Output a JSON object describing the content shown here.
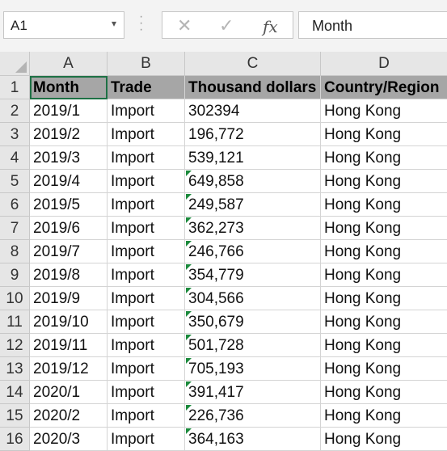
{
  "formula_bar": {
    "name_box": "A1",
    "fx_label": "fx",
    "content": "Month"
  },
  "columns": [
    "A",
    "B",
    "C",
    "D"
  ],
  "header_row": {
    "row_num": "1",
    "cells": [
      "Month",
      "Trade",
      "Thousand dollars",
      "Country/Region"
    ]
  },
  "rows": [
    {
      "num": "2",
      "cells": [
        "2019/1",
        "Import",
        "302394",
        "Hong Kong"
      ],
      "warn": false
    },
    {
      "num": "3",
      "cells": [
        "2019/2",
        "Import",
        "196,772",
        "Hong Kong"
      ],
      "warn": false
    },
    {
      "num": "4",
      "cells": [
        "2019/3",
        "Import",
        "539,121",
        "Hong Kong"
      ],
      "warn": false
    },
    {
      "num": "5",
      "cells": [
        "2019/4",
        "Import",
        "649,858",
        "Hong Kong"
      ],
      "warn": true
    },
    {
      "num": "6",
      "cells": [
        "2019/5",
        "Import",
        "249,587",
        "Hong Kong"
      ],
      "warn": true
    },
    {
      "num": "7",
      "cells": [
        "2019/6",
        "Import",
        "362,273",
        "Hong Kong"
      ],
      "warn": true
    },
    {
      "num": "8",
      "cells": [
        "2019/7",
        "Import",
        "246,766",
        "Hong Kong"
      ],
      "warn": true
    },
    {
      "num": "9",
      "cells": [
        "2019/8",
        "Import",
        "354,779",
        "Hong Kong"
      ],
      "warn": true
    },
    {
      "num": "10",
      "cells": [
        "2019/9",
        "Import",
        "304,566",
        "Hong Kong"
      ],
      "warn": true
    },
    {
      "num": "11",
      "cells": [
        "2019/10",
        "Import",
        "350,679",
        "Hong Kong"
      ],
      "warn": true
    },
    {
      "num": "12",
      "cells": [
        "2019/11",
        "Import",
        "501,728",
        "Hong Kong"
      ],
      "warn": true
    },
    {
      "num": "13",
      "cells": [
        "2019/12",
        "Import",
        "705,193",
        "Hong Kong"
      ],
      "warn": true
    },
    {
      "num": "14",
      "cells": [
        "2020/1",
        "Import",
        "391,417",
        "Hong Kong"
      ],
      "warn": true
    },
    {
      "num": "15",
      "cells": [
        "2020/2",
        "Import",
        "226,736",
        "Hong Kong"
      ],
      "warn": true
    },
    {
      "num": "16",
      "cells": [
        "2020/3",
        "Import",
        "364,163",
        "Hong Kong"
      ],
      "warn": true
    }
  ],
  "colors": {
    "header_fill": "#a6a6a6",
    "warning_triangle": "#1b8a3c",
    "selection": "#1e7145"
  }
}
